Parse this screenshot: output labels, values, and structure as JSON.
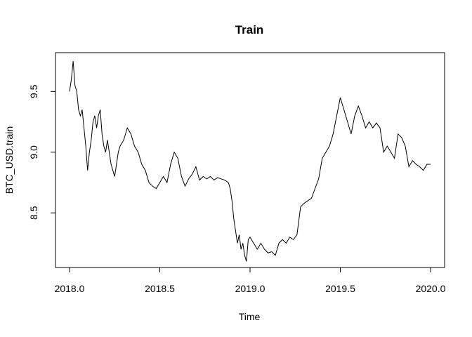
{
  "chart_data": {
    "type": "line",
    "title": "Train",
    "xlabel": "Time",
    "ylabel": "BTC_USD.train",
    "xlim": [
      2018.0,
      2020.0
    ],
    "ylim": [
      8.05,
      9.82
    ],
    "x_ticks": [
      2018.0,
      2018.5,
      2019.0,
      2019.5,
      2020.0
    ],
    "x_tick_labels": [
      "2018.0",
      "2018.5",
      "2019.0",
      "2019.5",
      "2020.0"
    ],
    "y_ticks": [
      8.5,
      9.0,
      9.5
    ],
    "y_tick_labels": [
      "8.5",
      "9.0",
      "9.5"
    ],
    "grid": false,
    "line_color": "#000000",
    "series": [
      {
        "x": [
          2018.0,
          2018.01,
          2018.02,
          2018.025,
          2018.03,
          2018.04,
          2018.05,
          2018.06,
          2018.07,
          2018.08,
          2018.09,
          2018.1,
          2018.11,
          2018.12,
          2018.13,
          2018.14,
          2018.15,
          2018.16,
          2018.17,
          2018.18,
          2018.19,
          2018.2,
          2018.21,
          2018.22,
          2018.23,
          2018.24,
          2018.25,
          2018.26,
          2018.27,
          2018.28,
          2018.3,
          2018.32,
          2018.34,
          2018.36,
          2018.38,
          2018.4,
          2018.42,
          2018.44,
          2018.46,
          2018.48,
          2018.5,
          2018.52,
          2018.54,
          2018.56,
          2018.58,
          2018.6,
          2018.62,
          2018.64,
          2018.66,
          2018.68,
          2018.7,
          2018.72,
          2018.74,
          2018.76,
          2018.78,
          2018.8,
          2018.82,
          2018.84,
          2018.86,
          2018.88,
          2018.89,
          2018.9,
          2018.91,
          2018.92,
          2018.93,
          2018.94,
          2018.95,
          2018.96,
          2018.97,
          2018.98,
          2018.99,
          2019.0,
          2019.02,
          2019.04,
          2019.06,
          2019.08,
          2019.1,
          2019.12,
          2019.14,
          2019.16,
          2019.18,
          2019.2,
          2019.22,
          2019.24,
          2019.26,
          2019.28,
          2019.3,
          2019.32,
          2019.34,
          2019.36,
          2019.38,
          2019.4,
          2019.42,
          2019.44,
          2019.46,
          2019.48,
          2019.5,
          2019.52,
          2019.54,
          2019.56,
          2019.58,
          2019.6,
          2019.62,
          2019.64,
          2019.66,
          2019.68,
          2019.7,
          2019.72,
          2019.74,
          2019.76,
          2019.78,
          2019.8,
          2019.82,
          2019.84,
          2019.86,
          2019.88,
          2019.9,
          2019.92,
          2019.94,
          2019.96,
          2019.98,
          2020.0
        ],
        "y": [
          9.5,
          9.6,
          9.75,
          9.65,
          9.55,
          9.5,
          9.35,
          9.3,
          9.35,
          9.2,
          9.05,
          8.85,
          9.0,
          9.1,
          9.25,
          9.3,
          9.2,
          9.3,
          9.35,
          9.15,
          9.05,
          9.0,
          9.1,
          9.0,
          8.9,
          8.85,
          8.8,
          8.9,
          9.0,
          9.05,
          9.1,
          9.2,
          9.15,
          9.05,
          9.0,
          8.9,
          8.85,
          8.75,
          8.72,
          8.7,
          8.75,
          8.8,
          8.75,
          8.9,
          9.0,
          8.95,
          8.8,
          8.72,
          8.78,
          8.82,
          8.88,
          8.77,
          8.8,
          8.78,
          8.8,
          8.77,
          8.79,
          8.78,
          8.77,
          8.75,
          8.7,
          8.6,
          8.45,
          8.35,
          8.25,
          8.32,
          8.2,
          8.25,
          8.15,
          8.1,
          8.28,
          8.3,
          8.25,
          8.2,
          8.25,
          8.2,
          8.17,
          8.18,
          8.15,
          8.25,
          8.28,
          8.25,
          8.3,
          8.28,
          8.32,
          8.55,
          8.58,
          8.6,
          8.62,
          8.7,
          8.78,
          8.95,
          9.0,
          9.05,
          9.15,
          9.3,
          9.45,
          9.35,
          9.25,
          9.15,
          9.3,
          9.38,
          9.3,
          9.2,
          9.25,
          9.2,
          9.24,
          9.2,
          9.0,
          9.05,
          9.0,
          8.95,
          9.15,
          9.12,
          9.05,
          8.88,
          8.93,
          8.9,
          8.88,
          8.85,
          8.9,
          8.9
        ]
      }
    ]
  }
}
